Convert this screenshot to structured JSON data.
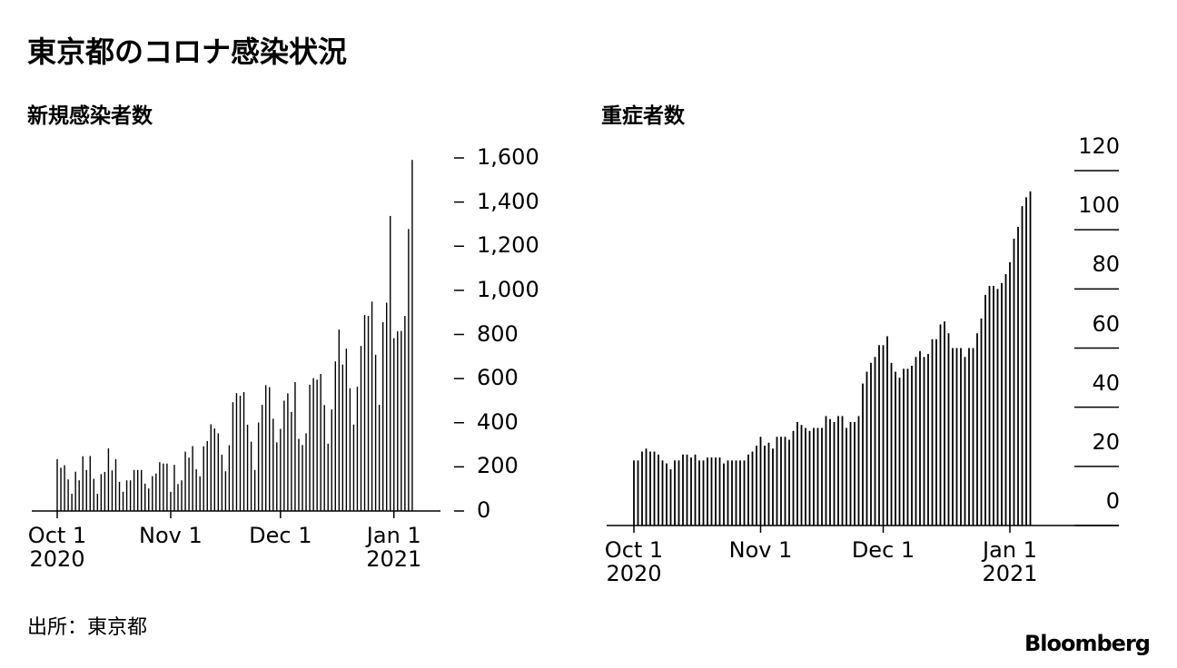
{
  "title": "東京都のコロナ感染状況",
  "source": "出所：東京都",
  "logo": "Bloomberg",
  "chart_data": [
    {
      "type": "bar",
      "title": "新規感染者数",
      "color": "#000000",
      "categories": [
        "Oct 1\n2020",
        null,
        null,
        null,
        null,
        null,
        null,
        null,
        null,
        null,
        null,
        null,
        null,
        null,
        null,
        null,
        null,
        null,
        null,
        null,
        null,
        null,
        null,
        null,
        null,
        null,
        null,
        null,
        null,
        null,
        null,
        "Nov 1",
        null,
        null,
        null,
        null,
        null,
        null,
        null,
        null,
        null,
        null,
        null,
        null,
        null,
        null,
        null,
        null,
        null,
        null,
        null,
        null,
        null,
        null,
        null,
        null,
        null,
        null,
        null,
        null,
        null,
        "Dec 1",
        null,
        null,
        null,
        null,
        null,
        null,
        null,
        null,
        null,
        null,
        null,
        null,
        null,
        null,
        null,
        null,
        null,
        null,
        null,
        null,
        null,
        null,
        null,
        null,
        null,
        null,
        null,
        null,
        null,
        null,
        "Jan 1\n2021",
        null,
        null,
        null,
        null,
        null
      ],
      "values": [
        235,
        196,
        207,
        143,
        78,
        178,
        139,
        248,
        186,
        249,
        146,
        78,
        167,
        177,
        284,
        184,
        235,
        132,
        87,
        139,
        139,
        186,
        186,
        186,
        124,
        102,
        158,
        170,
        221,
        215,
        215,
        87,
        209,
        122,
        139,
        269,
        242,
        294,
        189,
        157,
        293,
        317,
        393,
        374,
        352,
        255,
        180,
        298,
        493,
        534,
        522,
        539,
        391,
        314,
        186,
        401,
        481,
        570,
        561,
        418,
        311,
        372,
        500,
        533,
        449,
        584,
        327,
        299,
        352,
        572,
        602,
        595,
        621,
        480,
        305,
        460,
        678,
        822,
        664,
        736,
        556,
        392,
        563,
        748,
        888,
        884,
        949,
        708,
        481,
        856,
        944,
        1337,
        783,
        814,
        816,
        884,
        1278,
        1591
      ],
      "ylim": [
        0,
        1600
      ],
      "yticks": [
        0,
        200,
        400,
        600,
        800,
        {
          "value": 1000,
          "label": "1,000"
        },
        {
          "value": 1200,
          "label": "1,200"
        },
        {
          "value": 1400,
          "label": "1,400"
        },
        {
          "value": 1600,
          "label": "1,600"
        }
      ]
    },
    {
      "type": "bar",
      "title": "重症者数",
      "color": "#000000",
      "categories": [
        "Oct 1\n2020",
        null,
        null,
        null,
        null,
        null,
        null,
        null,
        null,
        null,
        null,
        null,
        null,
        null,
        null,
        null,
        null,
        null,
        null,
        null,
        null,
        null,
        null,
        null,
        null,
        null,
        null,
        null,
        null,
        null,
        null,
        "Nov 1",
        null,
        null,
        null,
        null,
        null,
        null,
        null,
        null,
        null,
        null,
        null,
        null,
        null,
        null,
        null,
        null,
        null,
        null,
        null,
        null,
        null,
        null,
        null,
        null,
        null,
        null,
        null,
        null,
        null,
        "Dec 1",
        null,
        null,
        null,
        null,
        null,
        null,
        null,
        null,
        null,
        null,
        null,
        null,
        null,
        null,
        null,
        null,
        null,
        null,
        null,
        null,
        null,
        null,
        null,
        null,
        null,
        null,
        null,
        null,
        null,
        null,
        "Jan 1\n2021",
        null,
        null,
        null,
        null,
        null
      ],
      "values": [
        22,
        22,
        25,
        26,
        25,
        25,
        24,
        22,
        21,
        19,
        22,
        22,
        24,
        24,
        23,
        24,
        22,
        22,
        23,
        23,
        23,
        23,
        21,
        22,
        22,
        22,
        22,
        22,
        24,
        25,
        27,
        30,
        27,
        28,
        26,
        30,
        30,
        30,
        29,
        32,
        35,
        34,
        33,
        32,
        33,
        33,
        33,
        37,
        36,
        35,
        37,
        37,
        33,
        35,
        35,
        37,
        48,
        52,
        55,
        57,
        61,
        61,
        64,
        55,
        52,
        50,
        53,
        53,
        54,
        57,
        59,
        57,
        58,
        63,
        63,
        68,
        69,
        65,
        60,
        60,
        60,
        57,
        60,
        60,
        65,
        70,
        78,
        81,
        81,
        80,
        82,
        85,
        89,
        97,
        101,
        108,
        111,
        113
      ],
      "ylim": [
        0,
        120
      ],
      "yticks": [
        0,
        20,
        40,
        60,
        80,
        100,
        120
      ]
    }
  ]
}
